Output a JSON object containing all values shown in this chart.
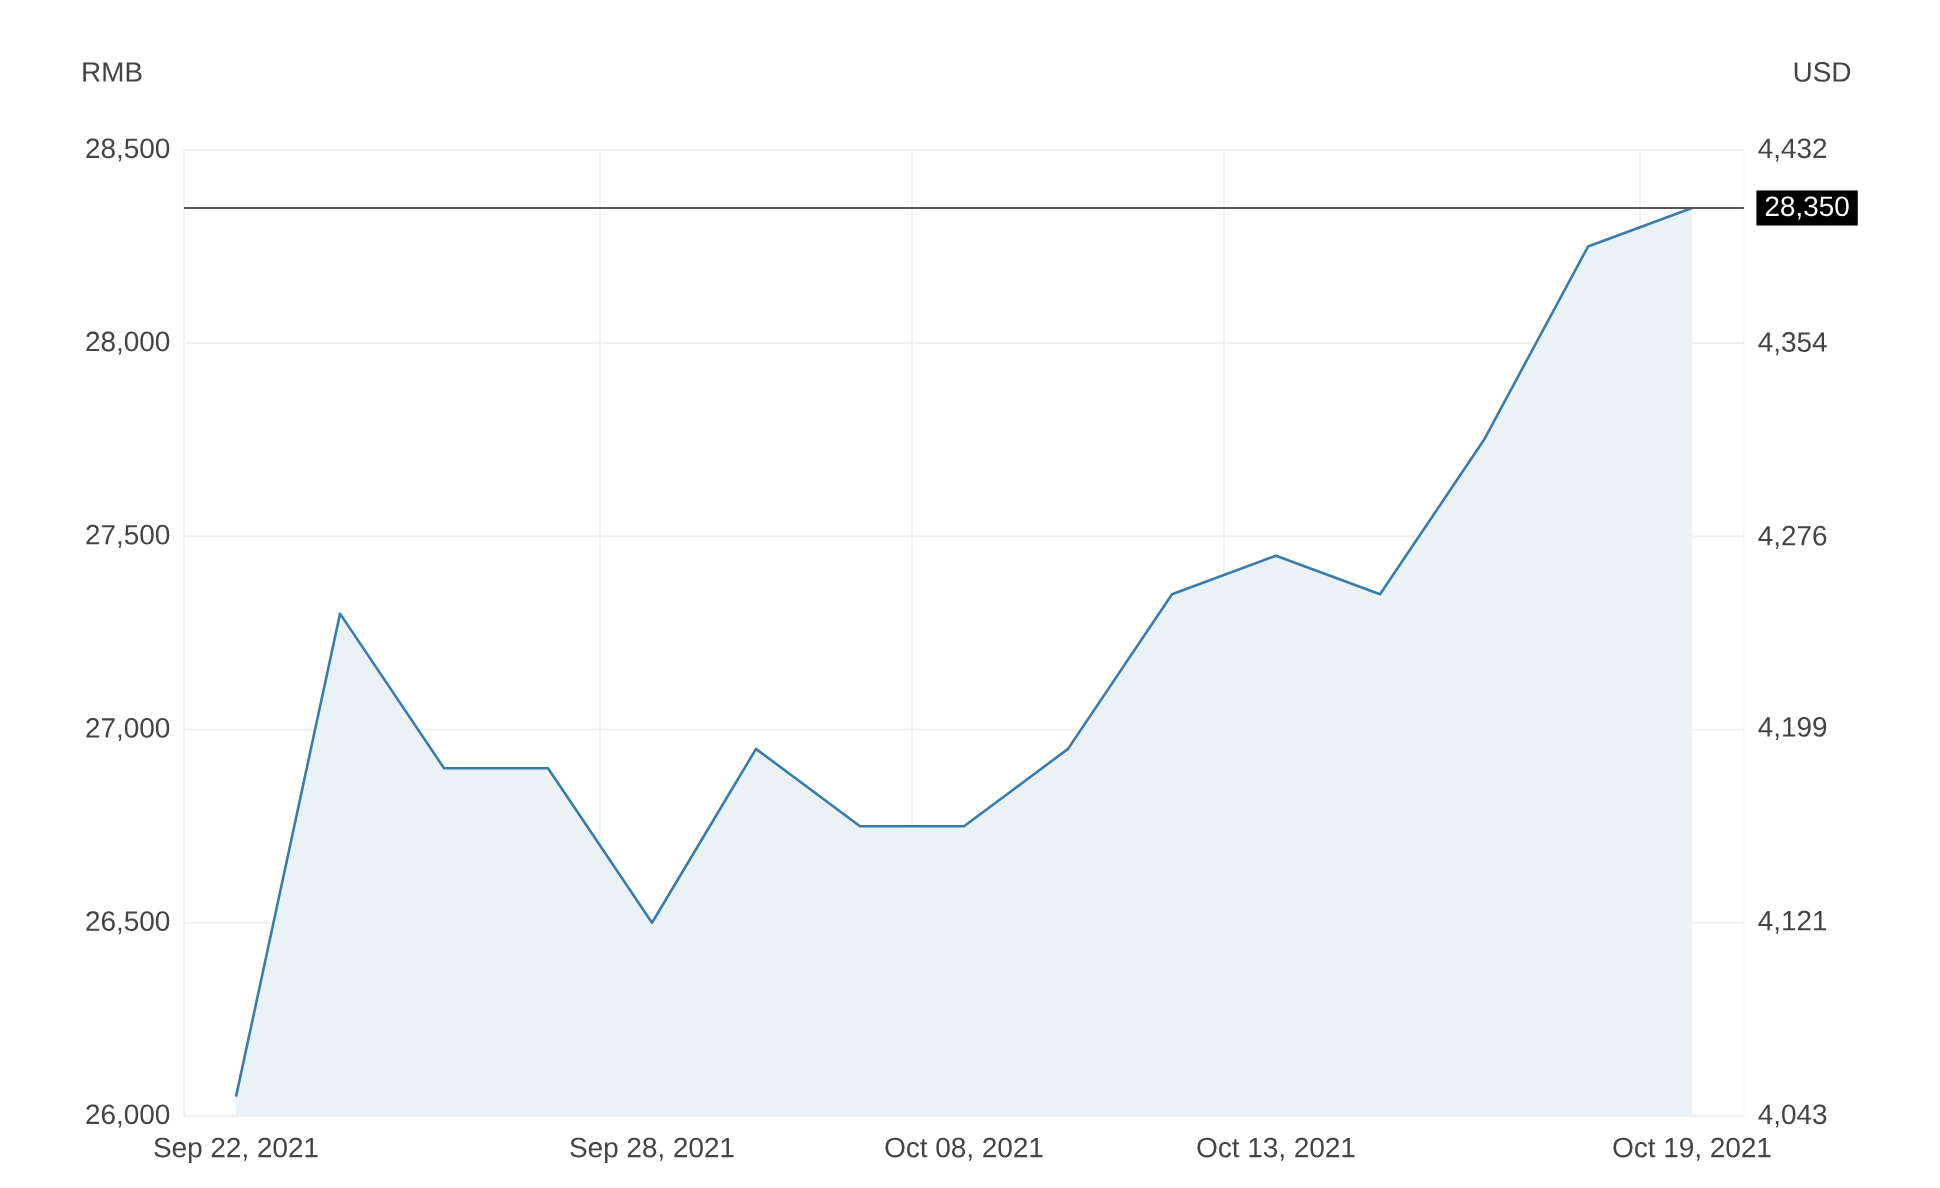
{
  "chart_data": {
    "type": "area",
    "ylabel": "RMB",
    "y2label": "USD",
    "categories": [
      "Sep 22, 2021",
      null,
      null,
      null,
      "Sep 28, 2021",
      null,
      null,
      "Oct 08, 2021",
      null,
      null,
      "Oct 13, 2021",
      null,
      null,
      null,
      "Oct 19, 2021"
    ],
    "values": [
      26050,
      27300,
      26900,
      26900,
      26500,
      26950,
      26750,
      26750,
      26950,
      27350,
      27450,
      27350,
      27750,
      28250,
      28350
    ],
    "color": "#3a7ca8",
    "ylim": [
      26000,
      28500
    ],
    "yticks": [
      {
        "value": 26000,
        "label": "26,000"
      },
      {
        "value": 26500,
        "label": "26,500"
      },
      {
        "value": 27000,
        "label": "27,000"
      },
      {
        "value": 27500,
        "label": "27,500"
      },
      {
        "value": 28000,
        "label": "28,000"
      },
      {
        "value": 28500,
        "label": "28,500"
      }
    ],
    "y2lim": [
      4043,
      4432
    ],
    "y2ticks": [
      {
        "value": 4043,
        "label": "4,043"
      },
      {
        "value": 4121,
        "label": "4,121"
      },
      {
        "value": 4199,
        "label": "4,199"
      },
      {
        "value": 4276,
        "label": "4,276"
      },
      {
        "value": 4354,
        "label": "4,354"
      },
      {
        "value": 4432,
        "label": "4,432"
      }
    ],
    "ref_lines": [
      {
        "axis": "y",
        "value": 28350,
        "label": "28,350",
        "color": "#555555"
      }
    ],
    "grid": true,
    "marker": "none",
    "line_style": "solid"
  }
}
